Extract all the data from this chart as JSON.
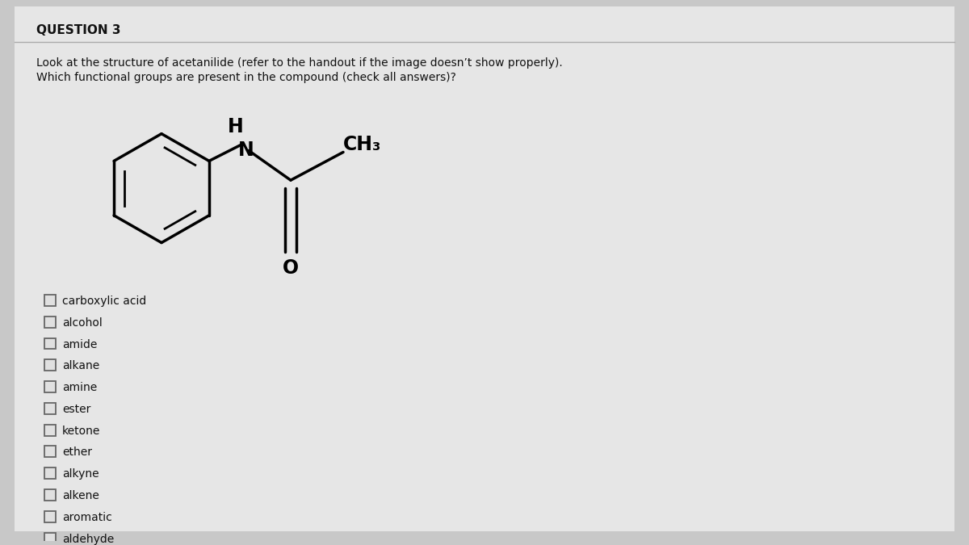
{
  "title": "QUESTION 3",
  "description_line1": "Look at the structure of acetanilide (refer to the handout if the image doesn’t show properly).",
  "description_line2": "Which functional groups are present in the compound (check all answers)?",
  "options": [
    "carboxylic acid",
    "alcohol",
    "amide",
    "alkane",
    "amine",
    "ester",
    "ketone",
    "ether",
    "alkyne",
    "alkene",
    "aromatic",
    "aldehyde"
  ],
  "bg_color": "#c8c8c8",
  "card_color": "#e8e8e8",
  "text_color": "#111111",
  "title_fontsize": 11,
  "body_fontsize": 10,
  "option_fontsize": 10,
  "struct_lw": 2.5,
  "inner_lw": 2.0
}
